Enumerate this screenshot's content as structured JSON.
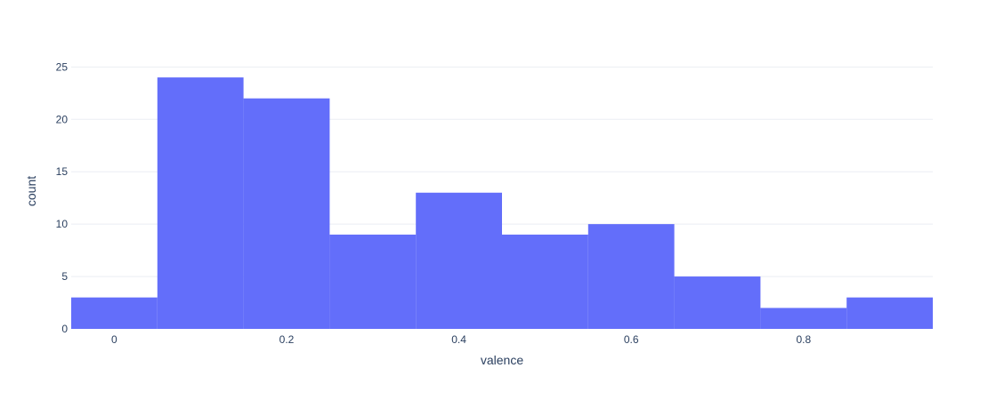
{
  "chart_data": {
    "type": "bar",
    "subtype": "histogram",
    "bar_color": "#636efa",
    "bins": [
      {
        "start": -0.05,
        "end": 0.05,
        "count": 3
      },
      {
        "start": 0.05,
        "end": 0.15,
        "count": 24
      },
      {
        "start": 0.15,
        "end": 0.25,
        "count": 22
      },
      {
        "start": 0.25,
        "end": 0.35,
        "count": 9
      },
      {
        "start": 0.35,
        "end": 0.45,
        "count": 13
      },
      {
        "start": 0.45,
        "end": 0.55,
        "count": 9
      },
      {
        "start": 0.55,
        "end": 0.65,
        "count": 10
      },
      {
        "start": 0.65,
        "end": 0.75,
        "count": 5
      },
      {
        "start": 0.75,
        "end": 0.85,
        "count": 2
      },
      {
        "start": 0.85,
        "end": 0.95,
        "count": 3
      }
    ],
    "xlabel": "valence",
    "ylabel": "count",
    "xlim": [
      -0.05,
      0.95
    ],
    "ylim": [
      0,
      26.3
    ],
    "x_ticks": [
      0,
      0.2,
      0.4,
      0.6,
      0.8
    ],
    "x_tick_labels": [
      "0",
      "0.2",
      "0.4",
      "0.6",
      "0.8"
    ],
    "y_ticks": [
      0,
      5,
      10,
      15,
      20,
      25
    ],
    "y_tick_labels": [
      "0",
      "5",
      "10",
      "15",
      "20",
      "25"
    ],
    "grid": true
  }
}
